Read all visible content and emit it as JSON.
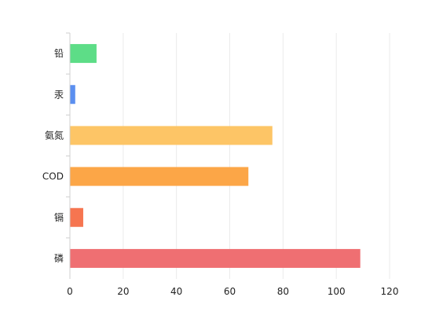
{
  "chart_data": {
    "type": "bar",
    "orientation": "horizontal",
    "title": "",
    "xlabel": "",
    "ylabel": "",
    "categories": [
      "磷",
      "镉",
      "COD",
      "氨氮",
      "汞",
      "铅"
    ],
    "values": [
      109,
      5,
      67,
      76,
      2,
      10
    ],
    "colors": [
      "#ef6f72",
      "#f67550",
      "#fca647",
      "#fdc566",
      "#5b8ff0",
      "#5ddd87"
    ],
    "xlim": [
      0,
      120
    ],
    "xticks": [
      0,
      20,
      40,
      60,
      80,
      100,
      120
    ],
    "grid": true,
    "legend": "none"
  }
}
